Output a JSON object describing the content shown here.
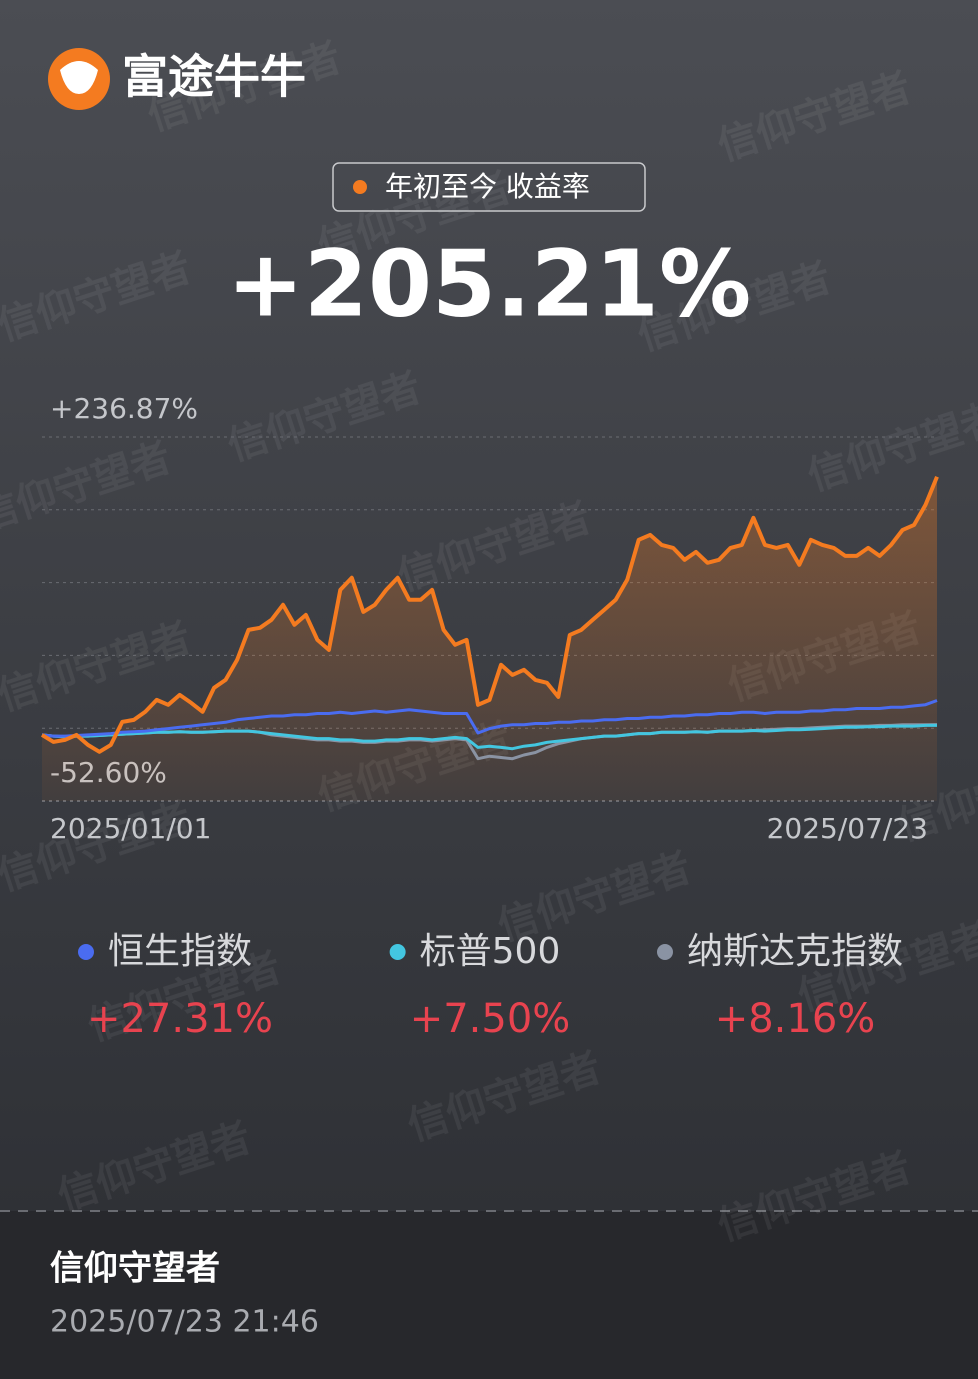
{
  "app_name": "富途牛牛",
  "watermark": "信仰守望者",
  "footer": {
    "user": "信仰守望者",
    "timestamp": "2025/07/23 21:46"
  },
  "chart_data": {
    "type": "line",
    "ylim": [
      -52.6,
      236.87
    ],
    "yticks": [
      {
        "value": 236.87,
        "label": "+236.87%"
      },
      {
        "value": -52.6,
        "label": "-52.60%"
      }
    ],
    "grid": true,
    "categories": [
      "2025/01/01",
      null,
      null,
      null,
      null,
      null,
      null,
      null,
      null,
      null,
      null,
      null,
      null,
      null,
      null,
      null,
      null,
      null,
      null,
      null,
      null,
      null,
      null,
      null,
      null,
      null,
      null,
      null,
      null,
      null,
      null,
      null,
      null,
      null,
      null,
      null,
      null,
      null,
      null,
      null,
      null,
      null,
      null,
      null,
      null,
      null,
      null,
      null,
      null,
      null,
      null,
      null,
      null,
      null,
      null,
      null,
      null,
      null,
      null,
      null,
      null,
      null,
      null,
      null,
      null,
      null,
      null,
      null,
      null,
      null,
      null,
      null,
      null,
      null,
      null,
      null,
      null,
      null,
      "2025/07/23"
    ],
    "series": [
      {
        "name": "年初至今 收益率",
        "color": "#f47b20",
        "total": {
          "value": 205.21,
          "label": "+205.21%"
        },
        "values": [
          0,
          -5.6,
          -4.0,
          0,
          -8.0,
          -13.5,
          -8.0,
          10.3,
          11.9,
          18.3,
          27.8,
          23.9,
          31.8,
          25.4,
          18.3,
          37.4,
          43.7,
          59.6,
          83.5,
          85.1,
          91.5,
          103.4,
          87.5,
          95.4,
          75.5,
          67.6,
          115.3,
          124.9,
          97.8,
          103.4,
          115.3,
          124.9,
          107.4,
          107.4,
          115.3,
          83.5,
          71.6,
          75.5,
          23.9,
          27.8,
          55.7,
          47.7,
          51.7,
          43.7,
          41.4,
          30.2,
          79.5,
          83.5,
          91.5,
          99.4,
          107.4,
          123.3,
          155.1,
          159.0,
          151.1,
          148.7,
          139.2,
          145.5,
          136.8,
          139.2,
          148.7,
          151.1,
          172.6,
          151.1,
          148.7,
          151.1,
          135.2,
          155.1,
          151.1,
          148.7,
          142.3,
          142.3,
          148.7,
          142.3,
          151.1,
          163.0,
          167.0,
          182.9,
          205.21
        ]
      },
      {
        "name": "恒生指数",
        "color": "#4a6cf0",
        "total": {
          "value": 27.31,
          "label": "+27.31%"
        },
        "values": [
          0,
          -1,
          -1,
          -0.5,
          0,
          0.5,
          1,
          2,
          2.5,
          3,
          4,
          5,
          6,
          7,
          8,
          9,
          10,
          12,
          13,
          14,
          15,
          15,
          16,
          16,
          17,
          17,
          18,
          17,
          18,
          19,
          18,
          19,
          20,
          19,
          18,
          17,
          17,
          17,
          1.5,
          5,
          7,
          8,
          8,
          9,
          9,
          10,
          10,
          11,
          11,
          12,
          12,
          13,
          13,
          14,
          14,
          15,
          15,
          16,
          16,
          17,
          17,
          18,
          18,
          17,
          18,
          18,
          18,
          19,
          19,
          20,
          20,
          21,
          21,
          21,
          22,
          22,
          23,
          24,
          27.31
        ]
      },
      {
        "name": "标普500",
        "color": "#43c6e0",
        "total": {
          "value": 7.5,
          "label": "+7.50%"
        },
        "values": [
          0,
          -1,
          -1.5,
          -1,
          -1,
          -0.5,
          0,
          0.5,
          1,
          1.5,
          2,
          2,
          2.5,
          2,
          2,
          2.5,
          3,
          3,
          3,
          2,
          1,
          0,
          -1,
          -2,
          -3,
          -3,
          -4,
          -4,
          -5,
          -5,
          -4,
          -4,
          -3,
          -3,
          -4,
          -3,
          -2,
          -3,
          -10,
          -9,
          -10,
          -11,
          -9,
          -8,
          -6,
          -5,
          -4,
          -3,
          -2,
          -1,
          -1,
          0,
          1,
          1,
          2,
          2,
          2,
          2.5,
          2,
          3,
          3,
          3,
          3.5,
          3,
          3.5,
          4,
          4,
          4.5,
          5,
          5.5,
          6,
          6,
          6.5,
          6.5,
          7,
          7,
          7,
          7.5,
          7.5
        ]
      },
      {
        "name": "纳斯达克指数",
        "color": "#8a93a3",
        "total": {
          "value": 8.16,
          "label": "+8.16%"
        },
        "values": [
          0,
          -1,
          -1.5,
          -1,
          -1,
          -0.5,
          0,
          0.5,
          1,
          1.5,
          2,
          2,
          2.5,
          2,
          2,
          2.5,
          3,
          3,
          3,
          2,
          0,
          -1,
          -2,
          -3,
          -4,
          -4,
          -5,
          -5,
          -6,
          -6,
          -5,
          -5,
          -4,
          -4,
          -5,
          -4,
          -3,
          -4,
          -19,
          -17,
          -18,
          -19,
          -16,
          -14,
          -10,
          -7,
          -5,
          -3,
          -2,
          -1,
          -1,
          0,
          1,
          1,
          2,
          2,
          2,
          2.5,
          2,
          3,
          3,
          3,
          3.5,
          4,
          4.5,
          5,
          5,
          5.5,
          6,
          6.5,
          7,
          7,
          7,
          7.5,
          7.5,
          8,
          8,
          8,
          8.16
        ]
      }
    ]
  }
}
